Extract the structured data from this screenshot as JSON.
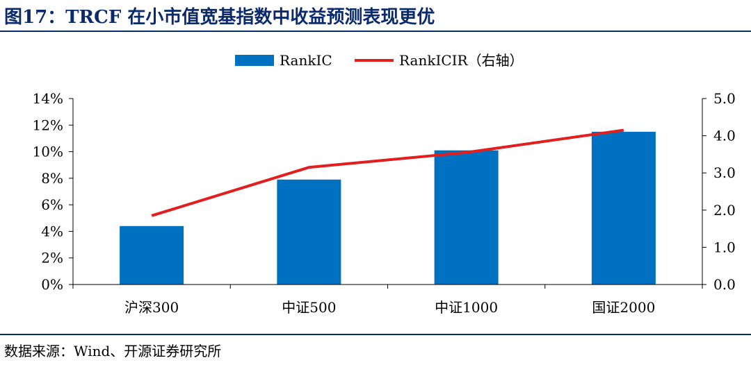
{
  "title": "图17：TRCF 在小市值宽基指数中收益预测表现更优",
  "source": "数据来源：Wind、开源证券研究所",
  "chart_data": {
    "type": "bar",
    "categories": [
      "沪深300",
      "中证500",
      "中证1000",
      "国证2000"
    ],
    "series": [
      {
        "name": "RankIC",
        "type": "bar",
        "axis": "left",
        "color": "#0070C0",
        "values": [
          4.4,
          7.9,
          10.1,
          11.5
        ]
      },
      {
        "name": "RankICIR（右轴）",
        "type": "line",
        "axis": "right",
        "color": "#E31E1E",
        "values": [
          1.85,
          3.15,
          3.55,
          4.15
        ]
      }
    ],
    "yleft": {
      "min": 0,
      "max": 14,
      "step": 2,
      "tick_labels": [
        "0%",
        "2%",
        "4%",
        "6%",
        "8%",
        "10%",
        "12%",
        "14%"
      ]
    },
    "yright": {
      "min": 0,
      "max": 5,
      "step": 1,
      "tick_labels": [
        "0.0",
        "1.0",
        "2.0",
        "3.0",
        "4.0",
        "5.0"
      ]
    },
    "legend": "top-center",
    "grid": false
  }
}
